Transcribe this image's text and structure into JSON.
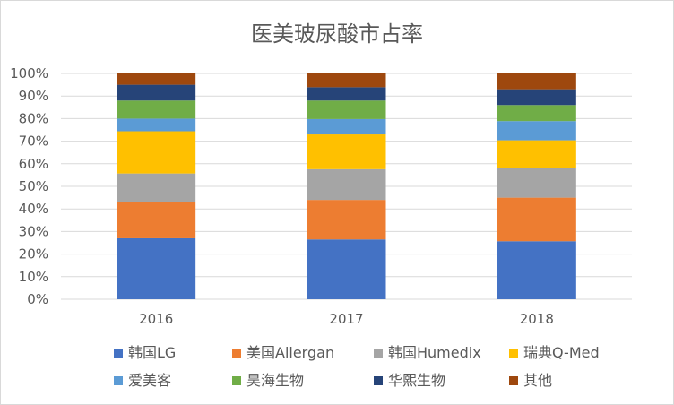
{
  "chart_data": {
    "type": "bar",
    "stacked": true,
    "percent_stacked": true,
    "title": "医美玻尿酸市占率",
    "categories": [
      "2016",
      "2017",
      "2018"
    ],
    "y_ticks": [
      "0%",
      "10%",
      "20%",
      "30%",
      "40%",
      "50%",
      "60%",
      "70%",
      "80%",
      "90%",
      "100%"
    ],
    "ylim": [
      0,
      100
    ],
    "grid": true,
    "legend_position": "bottom",
    "series": [
      {
        "name": "韩国LG",
        "color": "#4472c4",
        "values": [
          27,
          26.5,
          25.7
        ]
      },
      {
        "name": "美国Allergan",
        "color": "#ed7d31",
        "values": [
          16,
          17.5,
          19.3
        ]
      },
      {
        "name": "韩国Humedix",
        "color": "#a5a5a5",
        "values": [
          12.7,
          13.6,
          13
        ]
      },
      {
        "name": "瑞典Q-Med",
        "color": "#ffc000",
        "values": [
          18.7,
          15.4,
          12.4
        ]
      },
      {
        "name": "爱美客",
        "color": "#5b9bd5",
        "values": [
          5.6,
          6.8,
          8.5
        ]
      },
      {
        "name": "昊海生物",
        "color": "#70ad47",
        "values": [
          8,
          8.2,
          7.1
        ]
      },
      {
        "name": "华熙生物",
        "color": "#264478",
        "values": [
          7,
          5.9,
          7
        ]
      },
      {
        "name": "其他",
        "color": "#9e480e",
        "values": [
          5,
          6.1,
          7
        ]
      }
    ]
  }
}
